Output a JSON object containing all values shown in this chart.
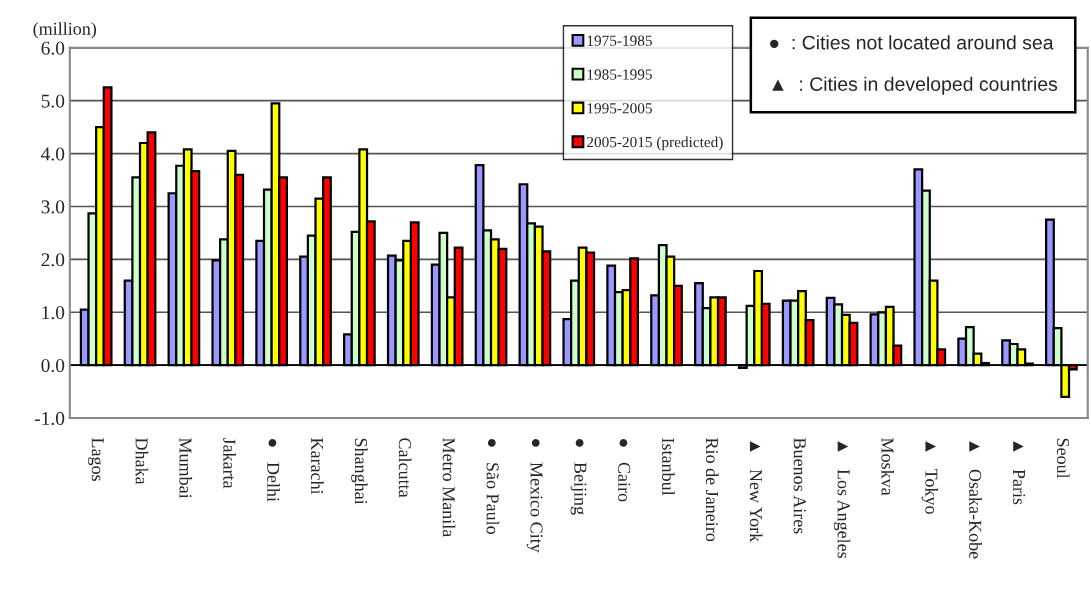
{
  "chart_data": {
    "type": "bar",
    "ylabel": "(million)",
    "categories": [
      "Lagos",
      "Dhaka",
      "Mumbai",
      "Jakarta",
      "●   Delhi",
      "Karachi",
      "Shanghai",
      "Calcutta",
      "Metro Manila",
      "●   São Paulo",
      "●   Mexico City",
      "●   Beijing",
      "●   Cairo",
      "Istanbul",
      "Rio de Janeiro",
      "▲   New York",
      "Buenos Aires",
      "▲   Los Angeles",
      "Moskva",
      "▲   Tokyo",
      "▲   Osaka-Kobe",
      "▲   Paris",
      "Seoul"
    ],
    "series": [
      {
        "name": "1975-1985",
        "color": "#9999ff",
        "values": [
          1.05,
          1.6,
          3.25,
          1.98,
          2.35,
          2.05,
          0.58,
          2.07,
          1.9,
          3.78,
          3.42,
          0.87,
          1.88,
          1.32,
          1.55,
          -0.05,
          1.22,
          1.27,
          0.96,
          3.7,
          0.5,
          0.47,
          2.75
        ]
      },
      {
        "name": "1985-1995",
        "color": "#ccffcc",
        "values": [
          2.87,
          3.55,
          3.77,
          2.38,
          3.32,
          2.45,
          2.52,
          1.98,
          2.5,
          2.55,
          2.68,
          1.6,
          1.38,
          2.27,
          1.08,
          1.12,
          1.22,
          1.15,
          1.0,
          3.3,
          0.72,
          0.4,
          0.7
        ]
      },
      {
        "name": "1995-2005",
        "color": "#ffff00",
        "values": [
          4.5,
          4.2,
          4.08,
          4.05,
          4.95,
          3.15,
          4.08,
          2.35,
          1.28,
          2.38,
          2.62,
          2.22,
          1.42,
          2.05,
          1.28,
          1.78,
          1.4,
          0.95,
          1.1,
          1.6,
          0.22,
          0.3,
          -0.6
        ]
      },
      {
        "name": "2005-2015 (predicted)",
        "color": "#ff0000",
        "values": [
          5.25,
          4.4,
          3.67,
          3.6,
          3.55,
          3.55,
          2.72,
          2.7,
          2.22,
          2.2,
          2.15,
          2.13,
          2.02,
          1.5,
          1.28,
          1.16,
          0.85,
          0.8,
          0.37,
          0.3,
          0.04,
          0.03,
          -0.08
        ]
      }
    ],
    "ylim": [
      -1,
      6
    ],
    "yticks": [
      {
        "value": -1,
        "label": "-1.0"
      },
      {
        "value": 0,
        "label": "0.0"
      },
      {
        "value": 1,
        "label": "1.0"
      },
      {
        "value": 2,
        "label": "2.0"
      },
      {
        "value": 3,
        "label": "3.0"
      },
      {
        "value": 4,
        "label": "4.0"
      },
      {
        "value": 5,
        "label": "5.0"
      },
      {
        "value": 6,
        "label": "6.0"
      }
    ],
    "grid": "y",
    "legend": "top",
    "annotations": [
      "●  : Cities not located around sea",
      "▲  : Cities in developed countries"
    ]
  }
}
